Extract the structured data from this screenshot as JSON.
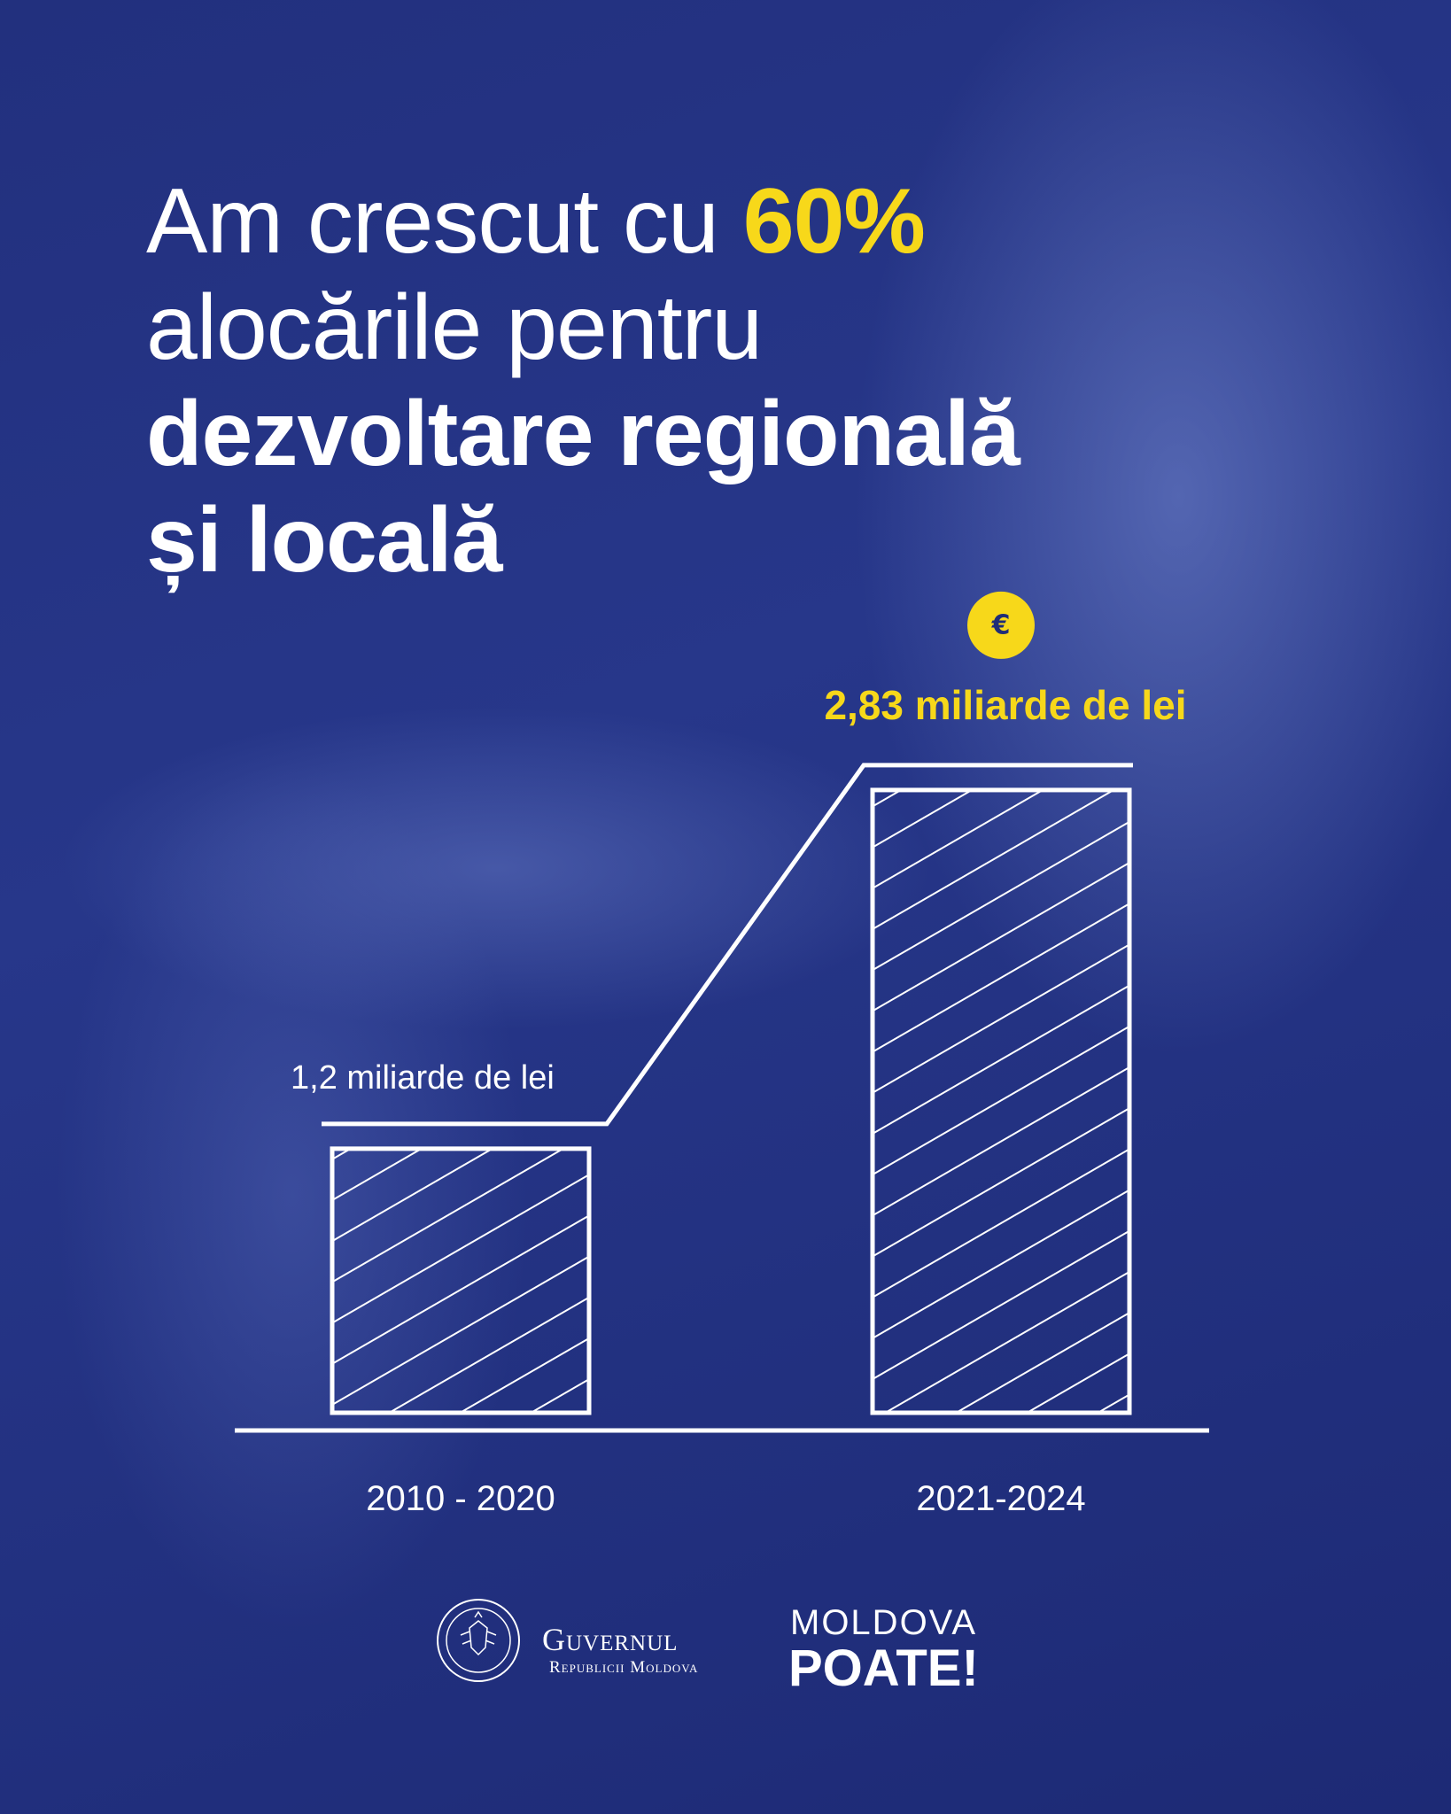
{
  "headline": {
    "line1_text": "Am crescut cu ",
    "line1_accent": "60%",
    "line2": "alocările pentru",
    "line3": "dezvoltare regională",
    "line4": "și locală"
  },
  "chart_data": {
    "type": "bar",
    "categories": [
      "2010 - 2020",
      "2021-2024"
    ],
    "values": [
      1.2,
      2.83
    ],
    "value_labels": [
      "1,2 miliarde de lei",
      "2,83 miliarde de lei"
    ],
    "unit": "miliarde de lei",
    "highlight_index": 1,
    "ylim": [
      0,
      3.2
    ],
    "title": "",
    "xlabel": "",
    "ylabel": "",
    "grid": false
  },
  "badge": {
    "symbol": "€",
    "icon": "euro-icon"
  },
  "colors": {
    "background": "#1f2d78",
    "accent": "#f7d81a",
    "text": "#ffffff"
  },
  "footer": {
    "gov_name": "Guvernul",
    "gov_sub": "Republicii Moldova",
    "brand_top": "MOLDOVA",
    "brand_bottom": "POATE!"
  }
}
